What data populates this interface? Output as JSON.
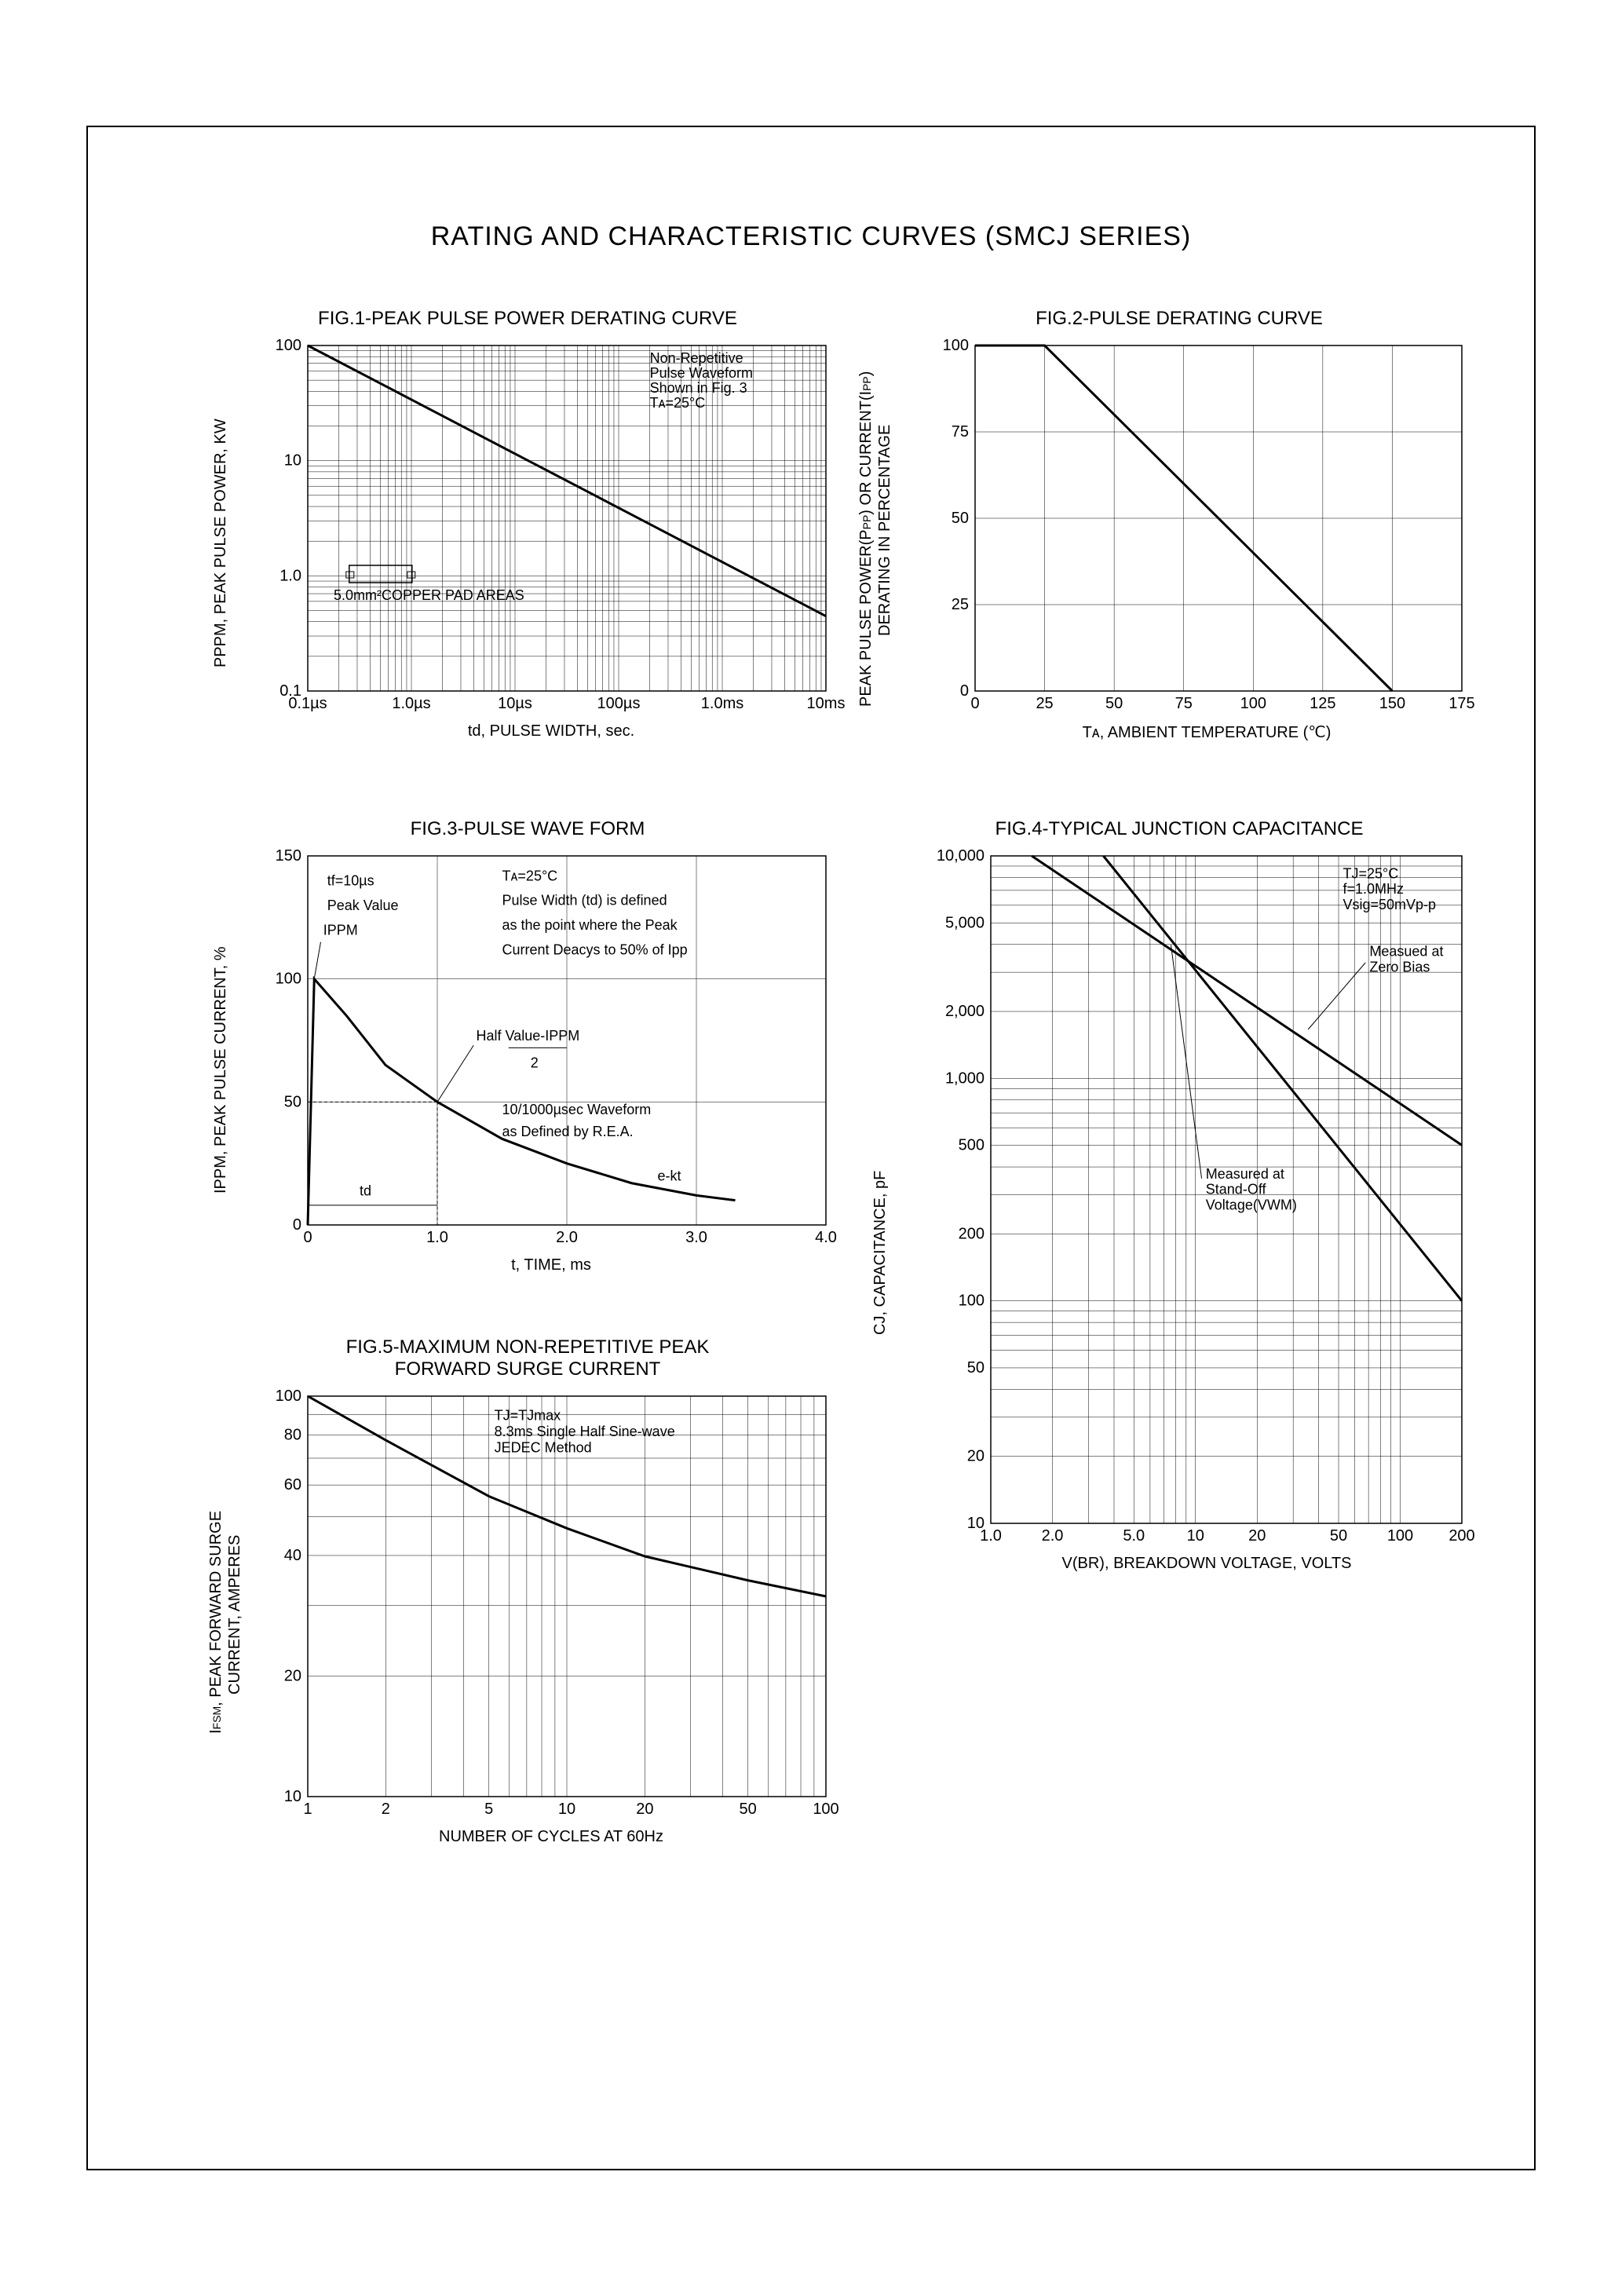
{
  "page": {
    "main_title": "RATING AND CHARACTERISTIC CURVES (SMCJ SERIES)"
  },
  "fig1": {
    "title": "FIG.1-PEAK PULSE POWER DERATING CURVE",
    "ylabel": "PPPM, PEAK PULSE POWER, KW",
    "xlabel": "td, PULSE WIDTH, sec.",
    "type": "line-loglog",
    "xlim_log": [
      -1,
      4
    ],
    "ylim_log": [
      -1,
      2
    ],
    "xticks": [
      "0.1µs",
      "1.0µs",
      "10µs",
      "100µs",
      "1.0ms",
      "10ms"
    ],
    "yticks": [
      "0.1",
      "1.0",
      "10",
      "100"
    ],
    "line_points_log": [
      [
        -1,
        2
      ],
      [
        4,
        -0.35
      ]
    ],
    "annotations": {
      "note1_lines": [
        "Non-Repetitive",
        "Pulse Waveform",
        "Shown in Fig. 3",
        "Tᴀ=25°C"
      ],
      "note2": "5.0mm²COPPER PAD AREAS"
    },
    "colors": {
      "bg": "#ffffff",
      "line": "#000000",
      "grid": "#000000",
      "text": "#000000"
    },
    "line_width": 3
  },
  "fig2": {
    "title": "FIG.2-PULSE DERATING CURVE",
    "ylabel": "PEAK PULSE POWER(PPP) OR CURRENT(IPP)\nDERATING IN PERCENTAGE",
    "xlabel": "Tᴀ, AMBIENT TEMPERATURE (℃)",
    "type": "line-linear",
    "xlim": [
      0,
      175
    ],
    "ylim": [
      0,
      100
    ],
    "xtick_step": 25,
    "ytick_step": 25,
    "xticks": [
      "0",
      "25",
      "50",
      "75",
      "100",
      "125",
      "150",
      "175"
    ],
    "yticks": [
      "0",
      "25",
      "50",
      "75",
      "100"
    ],
    "line_points": [
      [
        0,
        100
      ],
      [
        25,
        100
      ],
      [
        150,
        0
      ]
    ],
    "colors": {
      "bg": "#ffffff",
      "line": "#000000",
      "grid": "#000000",
      "text": "#000000"
    },
    "line_width": 3
  },
  "fig3": {
    "title": "FIG.3-PULSE WAVE FORM",
    "ylabel": "IPPM, PEAK PULSE CURRENT, %",
    "xlabel": "t, TIME, ms",
    "type": "line-linear",
    "xlim": [
      0,
      4.0
    ],
    "ylim": [
      0,
      150
    ],
    "xticks": [
      "0",
      "1.0",
      "2.0",
      "3.0",
      "4.0"
    ],
    "yticks": [
      "0",
      "50",
      "100",
      "150"
    ],
    "curve_points": [
      [
        0,
        0
      ],
      [
        0.05,
        100
      ],
      [
        0.3,
        85
      ],
      [
        0.6,
        65
      ],
      [
        1.0,
        50
      ],
      [
        1.5,
        35
      ],
      [
        2.0,
        25
      ],
      [
        2.5,
        17
      ],
      [
        3.0,
        12
      ],
      [
        3.3,
        10
      ]
    ],
    "annotations": {
      "tf": "tf=10µs",
      "peak": "Peak Value",
      "ippm": "IPPM",
      "ta": "Tᴀ=25°C",
      "def1": "Pulse Width (td) is defined",
      "def2": "as the point where the Peak",
      "def3": "Current Deacys to 50% of Ipp",
      "half": "Half Value-IPPM",
      "half2": "2",
      "wave1": "10/1000µsec Waveform",
      "wave2": "as Defined by R.E.A.",
      "td": "td",
      "ekt": "e-kt"
    },
    "colors": {
      "bg": "#ffffff",
      "line": "#000000",
      "grid": "#000000",
      "text": "#000000"
    },
    "line_width": 3
  },
  "fig4": {
    "title": "FIG.4-TYPICAL JUNCTION CAPACITANCE",
    "ylabel": "CJ, CAPACITANCE, pF",
    "xlabel": "V(BR), BREAKDOWN VOLTAGE, VOLTS",
    "type": "line-loglog",
    "xlim_log": [
      0,
      2.301
    ],
    "ylim_log": [
      1,
      4
    ],
    "xticks": [
      "1.0",
      "2.0",
      "5.0",
      "10",
      "20",
      "50",
      "100",
      "200"
    ],
    "xticks_logpos": [
      0,
      0.301,
      0.699,
      1.0,
      1.301,
      1.699,
      2.0,
      2.301
    ],
    "yticks": [
      "10",
      "20",
      "50",
      "100",
      "200",
      "500",
      "1,000",
      "2,000",
      "5,000",
      "10,000"
    ],
    "yticks_logpos": [
      1,
      1.301,
      1.699,
      2,
      2.301,
      2.699,
      3,
      3.301,
      3.699,
      4
    ],
    "line1_points_log": [
      [
        0.2,
        4
      ],
      [
        2.301,
        2.7
      ]
    ],
    "line2_points_log": [
      [
        0.55,
        4
      ],
      [
        2.301,
        2.0
      ]
    ],
    "annotations": {
      "cond_lines": [
        "TJ=25°C",
        "f=1.0MHz",
        "Vsig=50mVp-p"
      ],
      "zero_bias": "Measued at\nZero Bias",
      "standoff": "Measured at\nStand-Off\nVoltage(VWM)"
    },
    "colors": {
      "bg": "#ffffff",
      "line": "#000000",
      "grid": "#000000",
      "text": "#000000"
    },
    "line_width": 3
  },
  "fig5": {
    "title": "FIG.5-MAXIMUM NON-REPETITIVE PEAK\nFORWARD SURGE CURRENT",
    "ylabel": "IFSM, PEAK FORWARD SURGE\nCURRENT, AMPERES",
    "xlabel": "NUMBER OF CYCLES AT 60Hz",
    "type": "line-loglog",
    "xlim_log": [
      0,
      2
    ],
    "ylim_log": [
      1,
      2
    ],
    "yticks": [
      "10",
      "20",
      "40",
      "60",
      "80",
      "100"
    ],
    "yticks_logpos": [
      1,
      1.301,
      1.602,
      1.778,
      1.903,
      2
    ],
    "xticks": [
      "1",
      "2",
      "5",
      "10",
      "20",
      "50",
      "100"
    ],
    "xticks_logpos": [
      0,
      0.301,
      0.699,
      1.0,
      1.301,
      1.699,
      2.0
    ],
    "curve_points_log": [
      [
        0,
        2
      ],
      [
        0.301,
        1.89
      ],
      [
        0.699,
        1.75
      ],
      [
        1.0,
        1.67
      ],
      [
        1.301,
        1.6
      ],
      [
        1.699,
        1.54
      ],
      [
        2.0,
        1.5
      ]
    ],
    "annotations": {
      "note_lines": [
        "TJ=TJmax",
        "8.3ms Single Half Sine-wave",
        "JEDEC Method"
      ]
    },
    "colors": {
      "bg": "#ffffff",
      "line": "#000000",
      "grid": "#000000",
      "text": "#000000"
    },
    "line_width": 3
  }
}
